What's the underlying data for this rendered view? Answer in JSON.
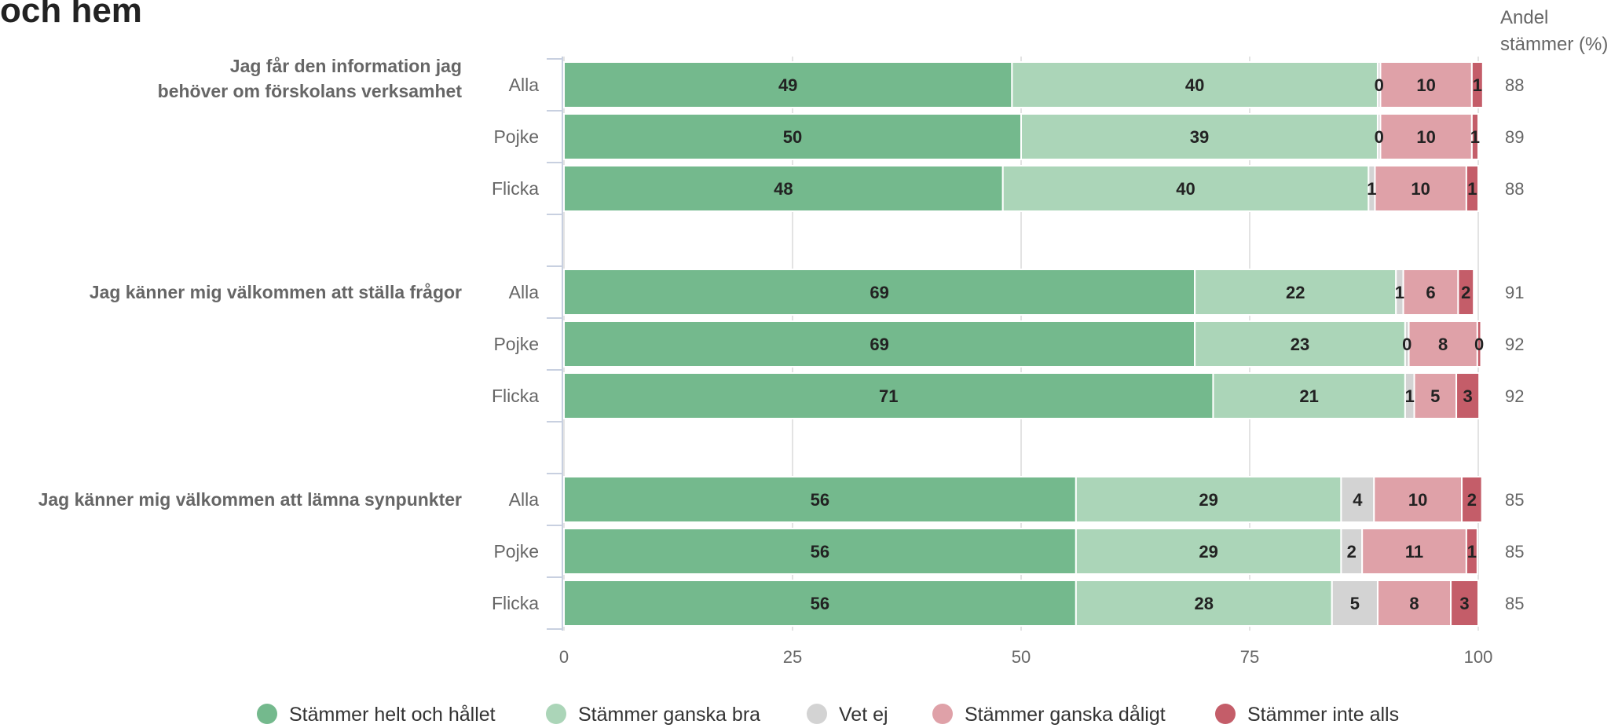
{
  "title": "och hem",
  "share_header": [
    "Andel",
    "stämmer (%)"
  ],
  "colors": {
    "Stämmer helt och hållet": "#74b98d",
    "Stämmer ganska bra": "#abd5b8",
    "Vet ej": "#d3d3d3",
    "Stämmer ganska dåligt": "#dfa1a8",
    "Stämmer inte alls": "#c45d69"
  },
  "chart_data": {
    "type": "bar",
    "orientation": "horizontal",
    "stacked": true,
    "xlim": [
      0,
      100
    ],
    "xticks": [
      0,
      25,
      50,
      75,
      100
    ],
    "grid": true,
    "legend": "bottom",
    "series_names": [
      "Stämmer helt och hållet",
      "Stämmer ganska bra",
      "Vet ej",
      "Stämmer ganska dåligt",
      "Stämmer inte alls"
    ],
    "groups": [
      {
        "question_lines": [
          "Jag får den information jag",
          "behöver om förskolans verksamhet"
        ],
        "rows": [
          {
            "label": "Alla",
            "values": [
              49,
              40,
              0.3,
              10,
              1.2
            ],
            "labels": [
              "49",
              "40",
              "0",
              "10",
              "1"
            ],
            "share": 88
          },
          {
            "label": "Pojke",
            "values": [
              50,
              39,
              0.3,
              10,
              0.7
            ],
            "labels": [
              "50",
              "39",
              "0",
              "10",
              "1"
            ],
            "share": 89
          },
          {
            "label": "Flicka",
            "values": [
              48,
              40,
              0.7,
              10,
              1.3
            ],
            "labels": [
              "48",
              "40",
              "1",
              "10",
              "1"
            ],
            "share": 88
          }
        ]
      },
      {
        "question_lines": [
          "Jag känner mig välkommen att ställa frågor"
        ],
        "rows": [
          {
            "label": "Alla",
            "values": [
              69,
              22,
              0.8,
              6,
              1.7
            ],
            "labels": [
              "69",
              "22",
              "1",
              "6",
              "2"
            ],
            "share": 91
          },
          {
            "label": "Pojke",
            "values": [
              69,
              23,
              0.4,
              7.5,
              0.4
            ],
            "labels": [
              "69",
              "23",
              "0",
              "8",
              "0"
            ],
            "share": 92
          },
          {
            "label": "Flicka",
            "values": [
              71,
              21,
              1,
              4.6,
              2.5
            ],
            "labels": [
              "71",
              "21",
              "1",
              "5",
              "3"
            ],
            "share": 92
          }
        ]
      },
      {
        "question_lines": [
          "Jag känner mig välkommen att lämna synpunkter"
        ],
        "rows": [
          {
            "label": "Alla",
            "values": [
              56,
              29,
              3.6,
              9.6,
              2.2
            ],
            "labels": [
              "56",
              "29",
              "4",
              "10",
              "2"
            ],
            "share": 85
          },
          {
            "label": "Pojke",
            "values": [
              56,
              29,
              2.3,
              11.4,
              1.2
            ],
            "labels": [
              "56",
              "29",
              "2",
              "11",
              "1"
            ],
            "share": 85
          },
          {
            "label": "Flicka",
            "values": [
              56,
              28,
              5,
              8,
              3
            ],
            "labels": [
              "56",
              "28",
              "5",
              "8",
              "3"
            ],
            "share": 85
          }
        ]
      }
    ]
  }
}
